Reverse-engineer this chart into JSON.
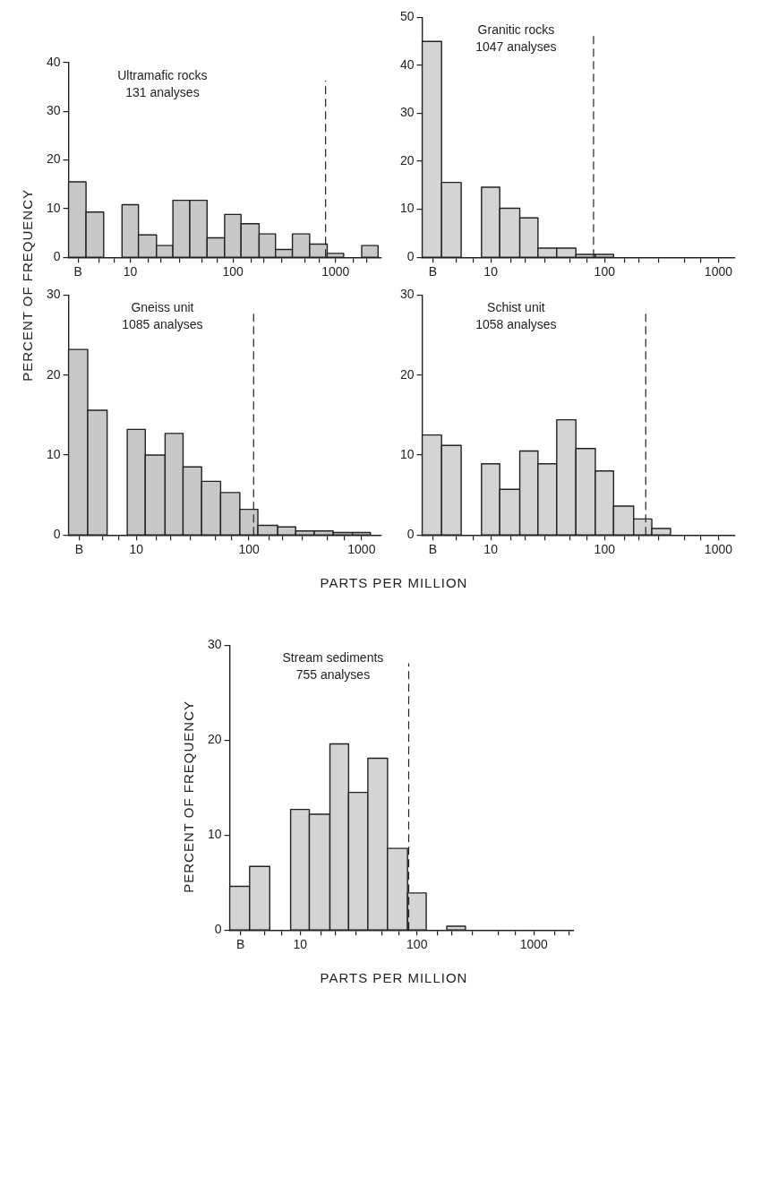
{
  "chart_data": [
    {
      "type": "histogram",
      "title": "Ultramafic rocks",
      "subtitle": "131 analyses",
      "ylabel": "PERCENT OF FREQUENCY",
      "color": "#c8c8c8",
      "log": "x",
      "bins": [
        2.5,
        3.7,
        5.5,
        8.3,
        12,
        18,
        26,
        38,
        56,
        83,
        120,
        180,
        260,
        380,
        560,
        830,
        1200,
        1800,
        2600
      ],
      "values": [
        15.5,
        9.3,
        0,
        10.8,
        4.6,
        2.4,
        11.7,
        11.7,
        4.0,
        8.8,
        6.9,
        4.8,
        1.6,
        4.8,
        2.7,
        0.8,
        0,
        2.4
      ],
      "xlim": [
        2.5,
        2800
      ],
      "ylim": [
        0,
        40
      ],
      "yticks": [
        0,
        10,
        20,
        30,
        40
      ],
      "xticks": [
        {
          "value": 3.1,
          "label": "B"
        },
        {
          "value": 5,
          "label": null
        },
        {
          "value": 7,
          "label": null
        },
        10,
        {
          "value": 15,
          "label": null
        },
        {
          "value": 20,
          "label": null
        },
        {
          "value": 30,
          "label": null
        },
        {
          "value": 50,
          "label": null
        },
        {
          "value": 70,
          "label": null
        },
        100,
        {
          "value": 150,
          "label": null
        },
        {
          "value": 200,
          "label": null
        },
        {
          "value": 300,
          "label": null
        },
        {
          "value": 500,
          "label": null
        },
        {
          "value": 700,
          "label": null
        },
        1000,
        {
          "value": 1500,
          "label": null
        },
        {
          "value": 2000,
          "label": null
        }
      ],
      "ref_lines": [
        {
          "axis": "x",
          "value": 800,
          "line_style": "dashed"
        }
      ]
    },
    {
      "type": "histogram",
      "title": "Granitic rocks",
      "subtitle": "1047 analyses",
      "color": "#d4d4d4",
      "log": "x",
      "bins": [
        2.5,
        3.7,
        5.5,
        8.3,
        12,
        18,
        26,
        38,
        56,
        83,
        120
      ],
      "values": [
        45.0,
        15.6,
        0,
        14.6,
        10.2,
        8.2,
        1.9,
        1.9,
        0.6,
        0.6
      ],
      "xlim": [
        2.5,
        1400
      ],
      "ylim": [
        0,
        50
      ],
      "yticks": [
        0,
        10,
        20,
        30,
        40,
        50
      ],
      "xticks": [
        {
          "value": 3.1,
          "label": "B"
        },
        {
          "value": 5,
          "label": null
        },
        {
          "value": 7,
          "label": null
        },
        10,
        {
          "value": 15,
          "label": null
        },
        {
          "value": 20,
          "label": null
        },
        {
          "value": 30,
          "label": null
        },
        {
          "value": 50,
          "label": null
        },
        {
          "value": 70,
          "label": null
        },
        100,
        {
          "value": 150,
          "label": null
        },
        {
          "value": 200,
          "label": null
        },
        {
          "value": 300,
          "label": null
        },
        {
          "value": 500,
          "label": null
        },
        {
          "value": 700,
          "label": null
        },
        1000
      ],
      "ref_lines": [
        {
          "axis": "x",
          "value": 80,
          "line_style": "dashed"
        }
      ]
    },
    {
      "type": "histogram",
      "title": "Gneiss unit",
      "subtitle": "1085 analyses",
      "xlabel": "PARTS PER MILLION",
      "color": "#c8c8c8",
      "log": "x",
      "bins": [
        2.5,
        3.7,
        5.5,
        8.3,
        12,
        18,
        26,
        38,
        56,
        83,
        120,
        180,
        260,
        380,
        560,
        830,
        1200
      ],
      "values": [
        23.2,
        15.6,
        0,
        13.2,
        10.0,
        12.7,
        8.5,
        6.7,
        5.3,
        3.2,
        1.2,
        1.0,
        0.5,
        0.5,
        0.3,
        0.3
      ],
      "xlim": [
        2.5,
        1500
      ],
      "ylim": [
        0,
        30
      ],
      "yticks": [
        0,
        10,
        20,
        30
      ],
      "xticks": [
        {
          "value": 3.1,
          "label": "B"
        },
        {
          "value": 5,
          "label": null
        },
        {
          "value": 7,
          "label": null
        },
        10,
        {
          "value": 15,
          "label": null
        },
        {
          "value": 20,
          "label": null
        },
        {
          "value": 30,
          "label": null
        },
        {
          "value": 50,
          "label": null
        },
        {
          "value": 70,
          "label": null
        },
        100,
        {
          "value": 150,
          "label": null
        },
        {
          "value": 200,
          "label": null
        },
        {
          "value": 300,
          "label": null
        },
        {
          "value": 500,
          "label": null
        },
        {
          "value": 700,
          "label": null
        },
        1000
      ],
      "ref_lines": [
        {
          "axis": "x",
          "value": 110,
          "line_style": "dashed"
        }
      ]
    },
    {
      "type": "histogram",
      "title": "Schist unit",
      "subtitle": "1058 analyses",
      "color": "#d4d4d4",
      "log": "x",
      "bins": [
        2.5,
        3.7,
        5.5,
        8.3,
        12,
        18,
        26,
        38,
        56,
        83,
        120,
        180,
        260,
        380
      ],
      "values": [
        12.5,
        11.2,
        0,
        8.9,
        5.7,
        10.5,
        8.9,
        14.4,
        10.8,
        8.0,
        3.6,
        2.0,
        0.8
      ],
      "xlim": [
        2.5,
        1400
      ],
      "ylim": [
        0,
        30
      ],
      "yticks": [
        0,
        10,
        20,
        30
      ],
      "xticks": [
        {
          "value": 3.1,
          "label": "B"
        },
        {
          "value": 5,
          "label": null
        },
        {
          "value": 7,
          "label": null
        },
        10,
        {
          "value": 15,
          "label": null
        },
        {
          "value": 20,
          "label": null
        },
        {
          "value": 30,
          "label": null
        },
        {
          "value": 50,
          "label": null
        },
        {
          "value": 70,
          "label": null
        },
        100,
        {
          "value": 150,
          "label": null
        },
        {
          "value": 200,
          "label": null
        },
        {
          "value": 300,
          "label": null
        },
        {
          "value": 500,
          "label": null
        },
        {
          "value": 700,
          "label": null
        },
        1000
      ],
      "ref_lines": [
        {
          "axis": "x",
          "value": 230,
          "line_style": "dashed"
        }
      ]
    },
    {
      "type": "histogram",
      "title": "Stream sediments",
      "subtitle": "755 analyses",
      "xlabel": "PARTS PER MILLION",
      "ylabel": "PERCENT OF FREQUENCY",
      "color": "#d4d4d4",
      "log": "x",
      "bins": [
        2.5,
        3.7,
        5.5,
        8.3,
        12,
        18,
        26,
        38,
        56,
        83,
        120,
        180,
        260
      ],
      "values": [
        4.6,
        6.7,
        0,
        12.7,
        12.2,
        19.6,
        14.5,
        18.1,
        8.6,
        3.9,
        0,
        0.4
      ],
      "xlim": [
        2.5,
        2200
      ],
      "ylim": [
        0,
        30
      ],
      "yticks": [
        0,
        10,
        20,
        30
      ],
      "xticks": [
        {
          "value": 3.1,
          "label": "B"
        },
        {
          "value": 5,
          "label": null
        },
        {
          "value": 7,
          "label": null
        },
        10,
        {
          "value": 15,
          "label": null
        },
        {
          "value": 20,
          "label": null
        },
        {
          "value": 30,
          "label": null
        },
        {
          "value": 50,
          "label": null
        },
        {
          "value": 70,
          "label": null
        },
        100,
        {
          "value": 150,
          "label": null
        },
        {
          "value": 200,
          "label": null
        },
        {
          "value": 300,
          "label": null
        },
        {
          "value": 500,
          "label": null
        },
        {
          "value": 700,
          "label": null
        },
        1000,
        {
          "value": 1500,
          "label": null
        },
        {
          "value": 2000,
          "label": null
        }
      ],
      "ref_lines": [
        {
          "axis": "x",
          "value": 85,
          "line_style": "dashed"
        }
      ]
    }
  ]
}
